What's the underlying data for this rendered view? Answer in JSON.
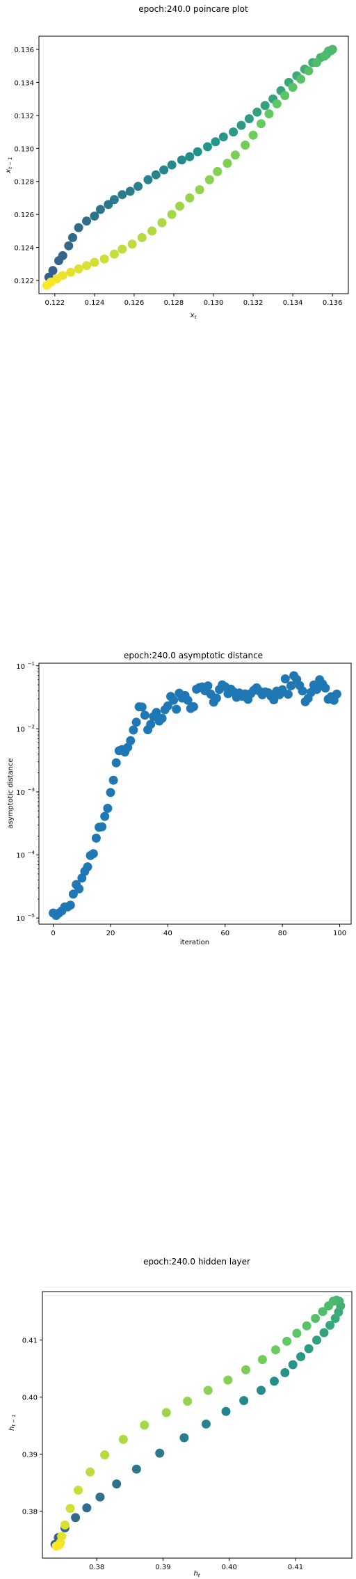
{
  "chart_data": [
    {
      "type": "scatter",
      "title": "epoch:240.0 poincare plot",
      "xlabel": "x_t",
      "ylabel": "x_{t-1}",
      "xlim": [
        0.1212,
        0.1368
      ],
      "ylim": [
        0.1212,
        0.1368
      ],
      "xticks": [
        0.122,
        0.124,
        0.126,
        0.128,
        0.13,
        0.132,
        0.134,
        0.136
      ],
      "yticks": [
        0.122,
        0.124,
        0.126,
        0.128,
        0.13,
        0.132,
        0.134,
        0.136
      ],
      "tick_labels_x": [
        "0.122",
        "0.124",
        "0.126",
        "0.128",
        "0.130",
        "0.132",
        "0.134",
        "0.136"
      ],
      "tick_labels_y": [
        "0.122",
        "0.124",
        "0.126",
        "0.128",
        "0.130",
        "0.132",
        "0.134",
        "0.136"
      ],
      "color_by": "t",
      "colormap": "viridis",
      "x": [
        0.1217,
        0.1219,
        0.1222,
        0.1224,
        0.1227,
        0.1229,
        0.1232,
        0.1236,
        0.124,
        0.1243,
        0.1247,
        0.125,
        0.1254,
        0.1258,
        0.1262,
        0.1267,
        0.1271,
        0.1275,
        0.1279,
        0.1284,
        0.1288,
        0.1292,
        0.1297,
        0.1301,
        0.1305,
        0.131,
        0.1314,
        0.1318,
        0.1322,
        0.1326,
        0.133,
        0.1334,
        0.1338,
        0.1342,
        0.1346,
        0.135,
        0.1354,
        0.1357,
        0.1358,
        0.136,
        0.1359,
        0.1356,
        0.1352,
        0.1348,
        0.1344,
        0.134,
        0.1336,
        0.1332,
        0.1328,
        0.1324,
        0.132,
        0.1316,
        0.1311,
        0.1307,
        0.1302,
        0.1298,
        0.1293,
        0.1288,
        0.1283,
        0.1279,
        0.1274,
        0.1269,
        0.1264,
        0.1259,
        0.1254,
        0.125,
        0.1245,
        0.124,
        0.1236,
        0.1232,
        0.1228,
        0.1224,
        0.1221,
        0.1218,
        0.1216
      ],
      "y": [
        0.1222,
        0.1226,
        0.1232,
        0.1235,
        0.1241,
        0.1246,
        0.1252,
        0.1256,
        0.1259,
        0.1263,
        0.1266,
        0.1269,
        0.1272,
        0.1274,
        0.1277,
        0.1281,
        0.1284,
        0.1287,
        0.129,
        0.1293,
        0.1295,
        0.1298,
        0.1301,
        0.1304,
        0.1307,
        0.131,
        0.1314,
        0.1318,
        0.1322,
        0.1326,
        0.133,
        0.1335,
        0.134,
        0.1344,
        0.1348,
        0.1352,
        0.1355,
        0.1357,
        0.1359,
        0.136,
        0.1359,
        0.1356,
        0.1352,
        0.1347,
        0.1342,
        0.1337,
        0.1332,
        0.1327,
        0.1321,
        0.1315,
        0.1308,
        0.1302,
        0.1296,
        0.1291,
        0.1286,
        0.1281,
        0.1275,
        0.127,
        0.1265,
        0.126,
        0.1255,
        0.125,
        0.1246,
        0.1242,
        0.1239,
        0.1236,
        0.1233,
        0.1231,
        0.1229,
        0.1227,
        0.1225,
        0.1223,
        0.1221,
        0.1219,
        0.1217
      ]
    },
    {
      "type": "scatter",
      "title": "epoch:240.0 asymptotic distance",
      "xlabel": "iteration",
      "ylabel": "asymptotic distance",
      "yscale": "log",
      "xlim": [
        -5,
        104
      ],
      "ylim": [
        8e-06,
        0.11
      ],
      "xticks": [
        0,
        20,
        40,
        60,
        80,
        100
      ],
      "tick_labels_x": [
        "0",
        "20",
        "40",
        "60",
        "80",
        "100"
      ],
      "yticks": [
        1e-05,
        0.0001,
        0.001,
        0.01,
        0.1
      ],
      "tick_labels_y": [
        "10",
        "10",
        "10",
        "10",
        "10"
      ],
      "tick_exponents_y": [
        "−5",
        "−4",
        "−3",
        "−2",
        "−1"
      ],
      "color": "#1f77b4",
      "x": [
        0,
        1,
        2,
        3,
        4,
        5,
        6,
        7,
        8,
        9,
        10,
        11,
        12,
        13,
        14,
        15,
        16,
        17,
        18,
        19,
        20,
        21,
        22,
        23,
        24,
        25,
        26,
        27,
        28,
        29,
        30,
        31,
        32,
        33,
        34,
        35,
        36,
        37,
        38,
        39,
        40,
        41,
        42,
        43,
        44,
        45,
        46,
        47,
        48,
        49,
        50,
        51,
        52,
        53,
        54,
        55,
        56,
        57,
        58,
        59,
        60,
        61,
        62,
        63,
        64,
        65,
        66,
        67,
        68,
        69,
        70,
        71,
        72,
        73,
        74,
        75,
        76,
        77,
        78,
        79,
        80,
        81,
        82,
        83,
        84,
        85,
        86,
        87,
        88,
        89,
        90,
        91,
        92,
        93,
        94,
        95,
        96,
        97,
        98,
        99
      ],
      "y": [
        1.2e-05,
        1.1e-05,
        1.2e-05,
        1.3e-05,
        1.5e-05,
        1.5e-05,
        1.6e-05,
        2.4e-05,
        3.4e-05,
        2.9e-05,
        4.3e-05,
        5.5e-05,
        6.5e-05,
        9.8e-05,
        0.000105,
        0.000185,
        0.000275,
        0.00028,
        0.00041,
        0.00055,
        0.00098,
        0.00153,
        0.0029,
        0.0045,
        0.0047,
        0.0043,
        0.0051,
        0.0065,
        0.0096,
        0.0128,
        0.0224,
        0.0222,
        0.0165,
        0.0097,
        0.0118,
        0.0157,
        0.0182,
        0.0133,
        0.0147,
        0.0201,
        0.0231,
        0.0327,
        0.0285,
        0.0205,
        0.0368,
        0.0308,
        0.0338,
        0.0284,
        0.0211,
        0.0225,
        0.0425,
        0.0451,
        0.0462,
        0.0401,
        0.0481,
        0.0355,
        0.0265,
        0.0308,
        0.0421,
        0.0499,
        0.0467,
        0.0361,
        0.0426,
        0.0385,
        0.0317,
        0.0371,
        0.0329,
        0.0359,
        0.0294,
        0.0364,
        0.0408,
        0.0448,
        0.0396,
        0.0347,
        0.0384,
        0.0375,
        0.0331,
        0.0289,
        0.0397,
        0.0348,
        0.0418,
        0.0621,
        0.0354,
        0.0482,
        0.0696,
        0.0608,
        0.0488,
        0.0399,
        0.0269,
        0.0305,
        0.0379,
        0.0498,
        0.0422,
        0.0601,
        0.0515,
        0.0444,
        0.0295,
        0.0322,
        0.0284,
        0.0356
      ]
    },
    {
      "type": "scatter",
      "title": "epoch:240.0 hidden layer",
      "xlabel": "h_t",
      "ylabel": "h_{t-1}",
      "xlim": [
        0.3718,
        0.4185
      ],
      "ylim": [
        0.3718,
        0.4185
      ],
      "xticks": [
        0.38,
        0.39,
        0.4,
        0.41
      ],
      "yticks": [
        0.38,
        0.39,
        0.4,
        0.41
      ],
      "tick_labels_x": [
        "0.38",
        "0.39",
        "0.40",
        "0.41"
      ],
      "tick_labels_y": [
        "0.38",
        "0.39",
        "0.40",
        "0.41"
      ],
      "color_by": "t",
      "colormap": "viridis",
      "x": [
        0.3737,
        0.3742,
        0.3752,
        0.3768,
        0.3785,
        0.3805,
        0.383,
        0.386,
        0.3895,
        0.3932,
        0.3965,
        0.3995,
        0.4022,
        0.4048,
        0.4068,
        0.4084,
        0.4096,
        0.4108,
        0.412,
        0.4132,
        0.4143,
        0.4152,
        0.416,
        0.4165,
        0.4168,
        0.4166,
        0.4162,
        0.4157,
        0.415,
        0.4141,
        0.413,
        0.4117,
        0.4102,
        0.4087,
        0.407,
        0.405,
        0.4025,
        0.3998,
        0.3968,
        0.3937,
        0.3905,
        0.3872,
        0.384,
        0.3812,
        0.379,
        0.3772,
        0.376,
        0.3752,
        0.3747,
        0.3745,
        0.3743,
        0.3739
      ],
      "y": [
        0.3742,
        0.3754,
        0.3771,
        0.3789,
        0.3806,
        0.3825,
        0.3848,
        0.3874,
        0.3902,
        0.3929,
        0.3953,
        0.3975,
        0.3994,
        0.4012,
        0.4028,
        0.4043,
        0.4057,
        0.4071,
        0.4085,
        0.41,
        0.4113,
        0.4126,
        0.4138,
        0.4149,
        0.416,
        0.4168,
        0.417,
        0.4168,
        0.416,
        0.415,
        0.4138,
        0.4125,
        0.4112,
        0.4098,
        0.4083,
        0.4066,
        0.4048,
        0.403,
        0.4012,
        0.3993,
        0.3973,
        0.3951,
        0.3926,
        0.3899,
        0.3869,
        0.3837,
        0.3805,
        0.3776,
        0.3756,
        0.3745,
        0.3741,
        0.3739
      ]
    }
  ]
}
